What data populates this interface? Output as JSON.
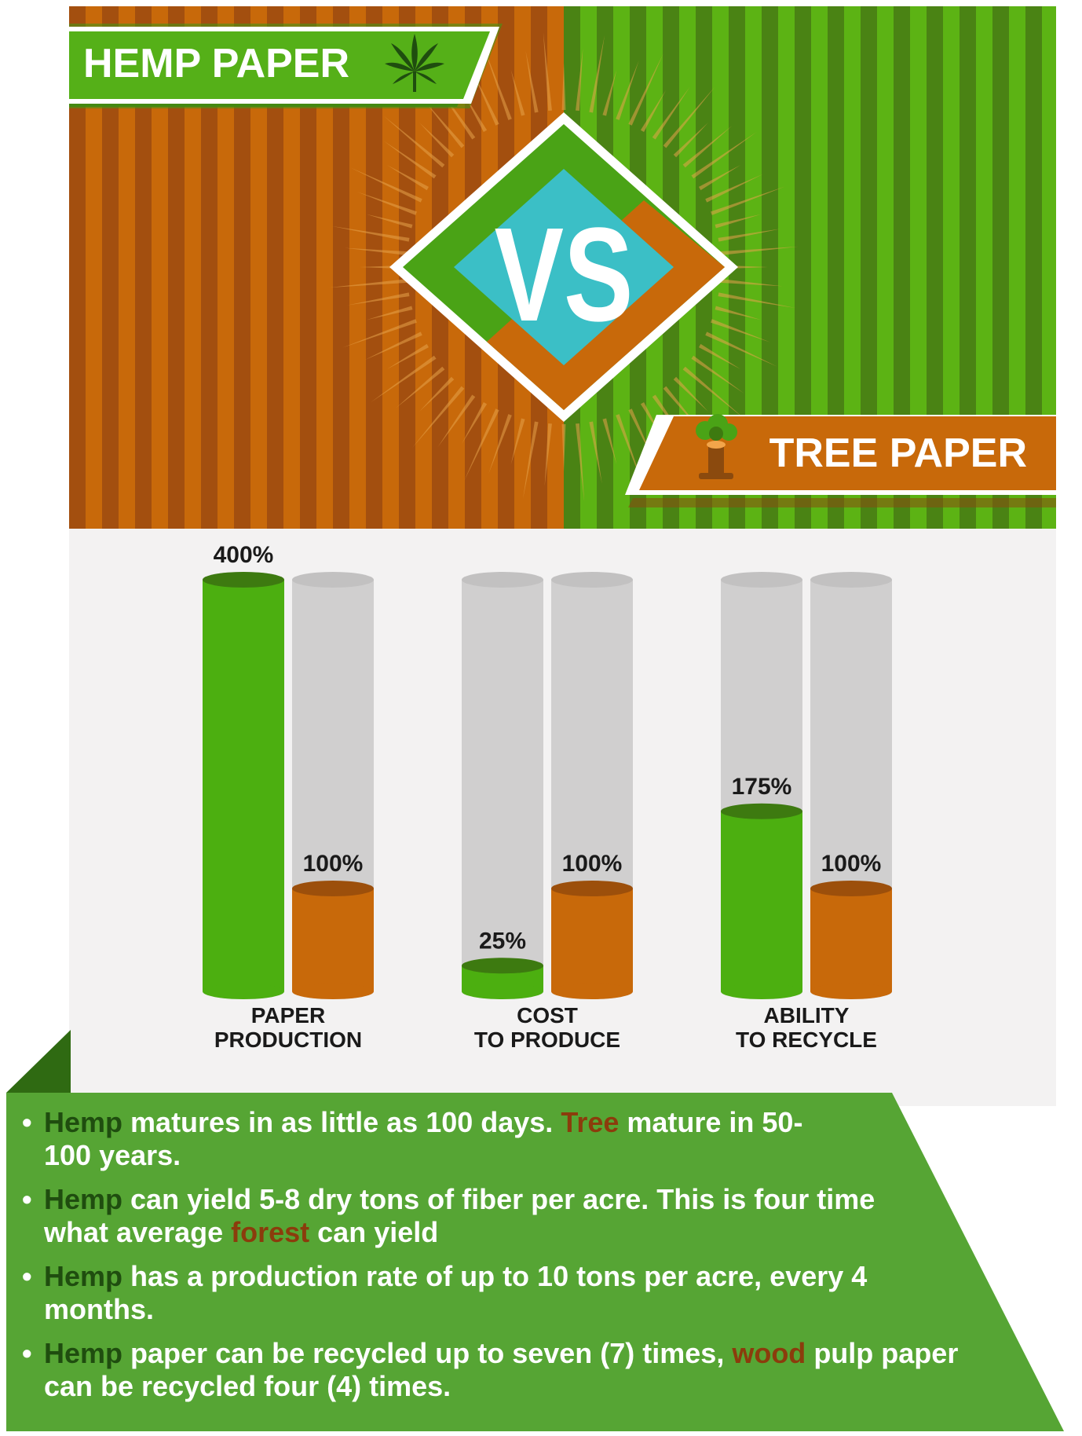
{
  "header": {
    "left_title": "HEMP PAPER",
    "right_title": "TREE PAPER",
    "vs_label": "VS",
    "left_icon": "hemp-leaf-icon",
    "right_icon": "tree-stump-icon"
  },
  "colors": {
    "hemp_green": "#4caf10",
    "tree_orange": "#c8690a",
    "empty_gray": "#d0cfcf",
    "vs_cyan": "#3bbfc6",
    "panel_green": "#56a534",
    "keyword_hemp": "#1f4d0f",
    "keyword_tree": "#8b3c0c"
  },
  "chart_data": {
    "type": "bar",
    "categories": [
      "PAPER PRODUCTION",
      "COST TO PRODUCE",
      "ABILITY TO RECYCLE"
    ],
    "category_lines": [
      [
        "PAPER",
        "PRODUCTION"
      ],
      [
        "COST",
        "TO PRODUCE"
      ],
      [
        "ABILITY",
        "TO  RECYCLE"
      ]
    ],
    "series": [
      {
        "values": [
          400,
          25,
          175
        ],
        "labels": [
          "400%",
          "25%",
          "175%"
        ],
        "color": "#4caf10"
      },
      {
        "values": [
          100,
          100,
          100
        ],
        "labels": [
          "100%",
          "100%",
          "100%"
        ],
        "color": "#c8690a"
      }
    ],
    "ylim": [
      0,
      400
    ],
    "grid": false,
    "legend": "none"
  },
  "facts": [
    {
      "parts": [
        {
          "text": "Hemp",
          "kind": "hemp"
        },
        {
          "text": " matures in as little as 100 days. "
        },
        {
          "text": "Tree",
          "kind": "tree"
        },
        {
          "text": " mature in 50-100 years."
        }
      ]
    },
    {
      "parts": [
        {
          "text": "Hemp",
          "kind": "hemp"
        },
        {
          "text": " can yield 5-8 dry tons of fiber per acre. This is four time what average "
        },
        {
          "text": "forest",
          "kind": "tree"
        },
        {
          "text": " can yield"
        }
      ]
    },
    {
      "parts": [
        {
          "text": "Hemp",
          "kind": "hemp"
        },
        {
          "text": " has a production rate of up to 10 tons per acre, every 4 months."
        }
      ]
    },
    {
      "parts": [
        {
          "text": "Hemp",
          "kind": "hemp"
        },
        {
          "text": " paper can be recycled up to seven (7) times, "
        },
        {
          "text": "wood",
          "kind": "tree"
        },
        {
          "text": " pulp paper can be recycled four (4) times."
        }
      ]
    }
  ]
}
